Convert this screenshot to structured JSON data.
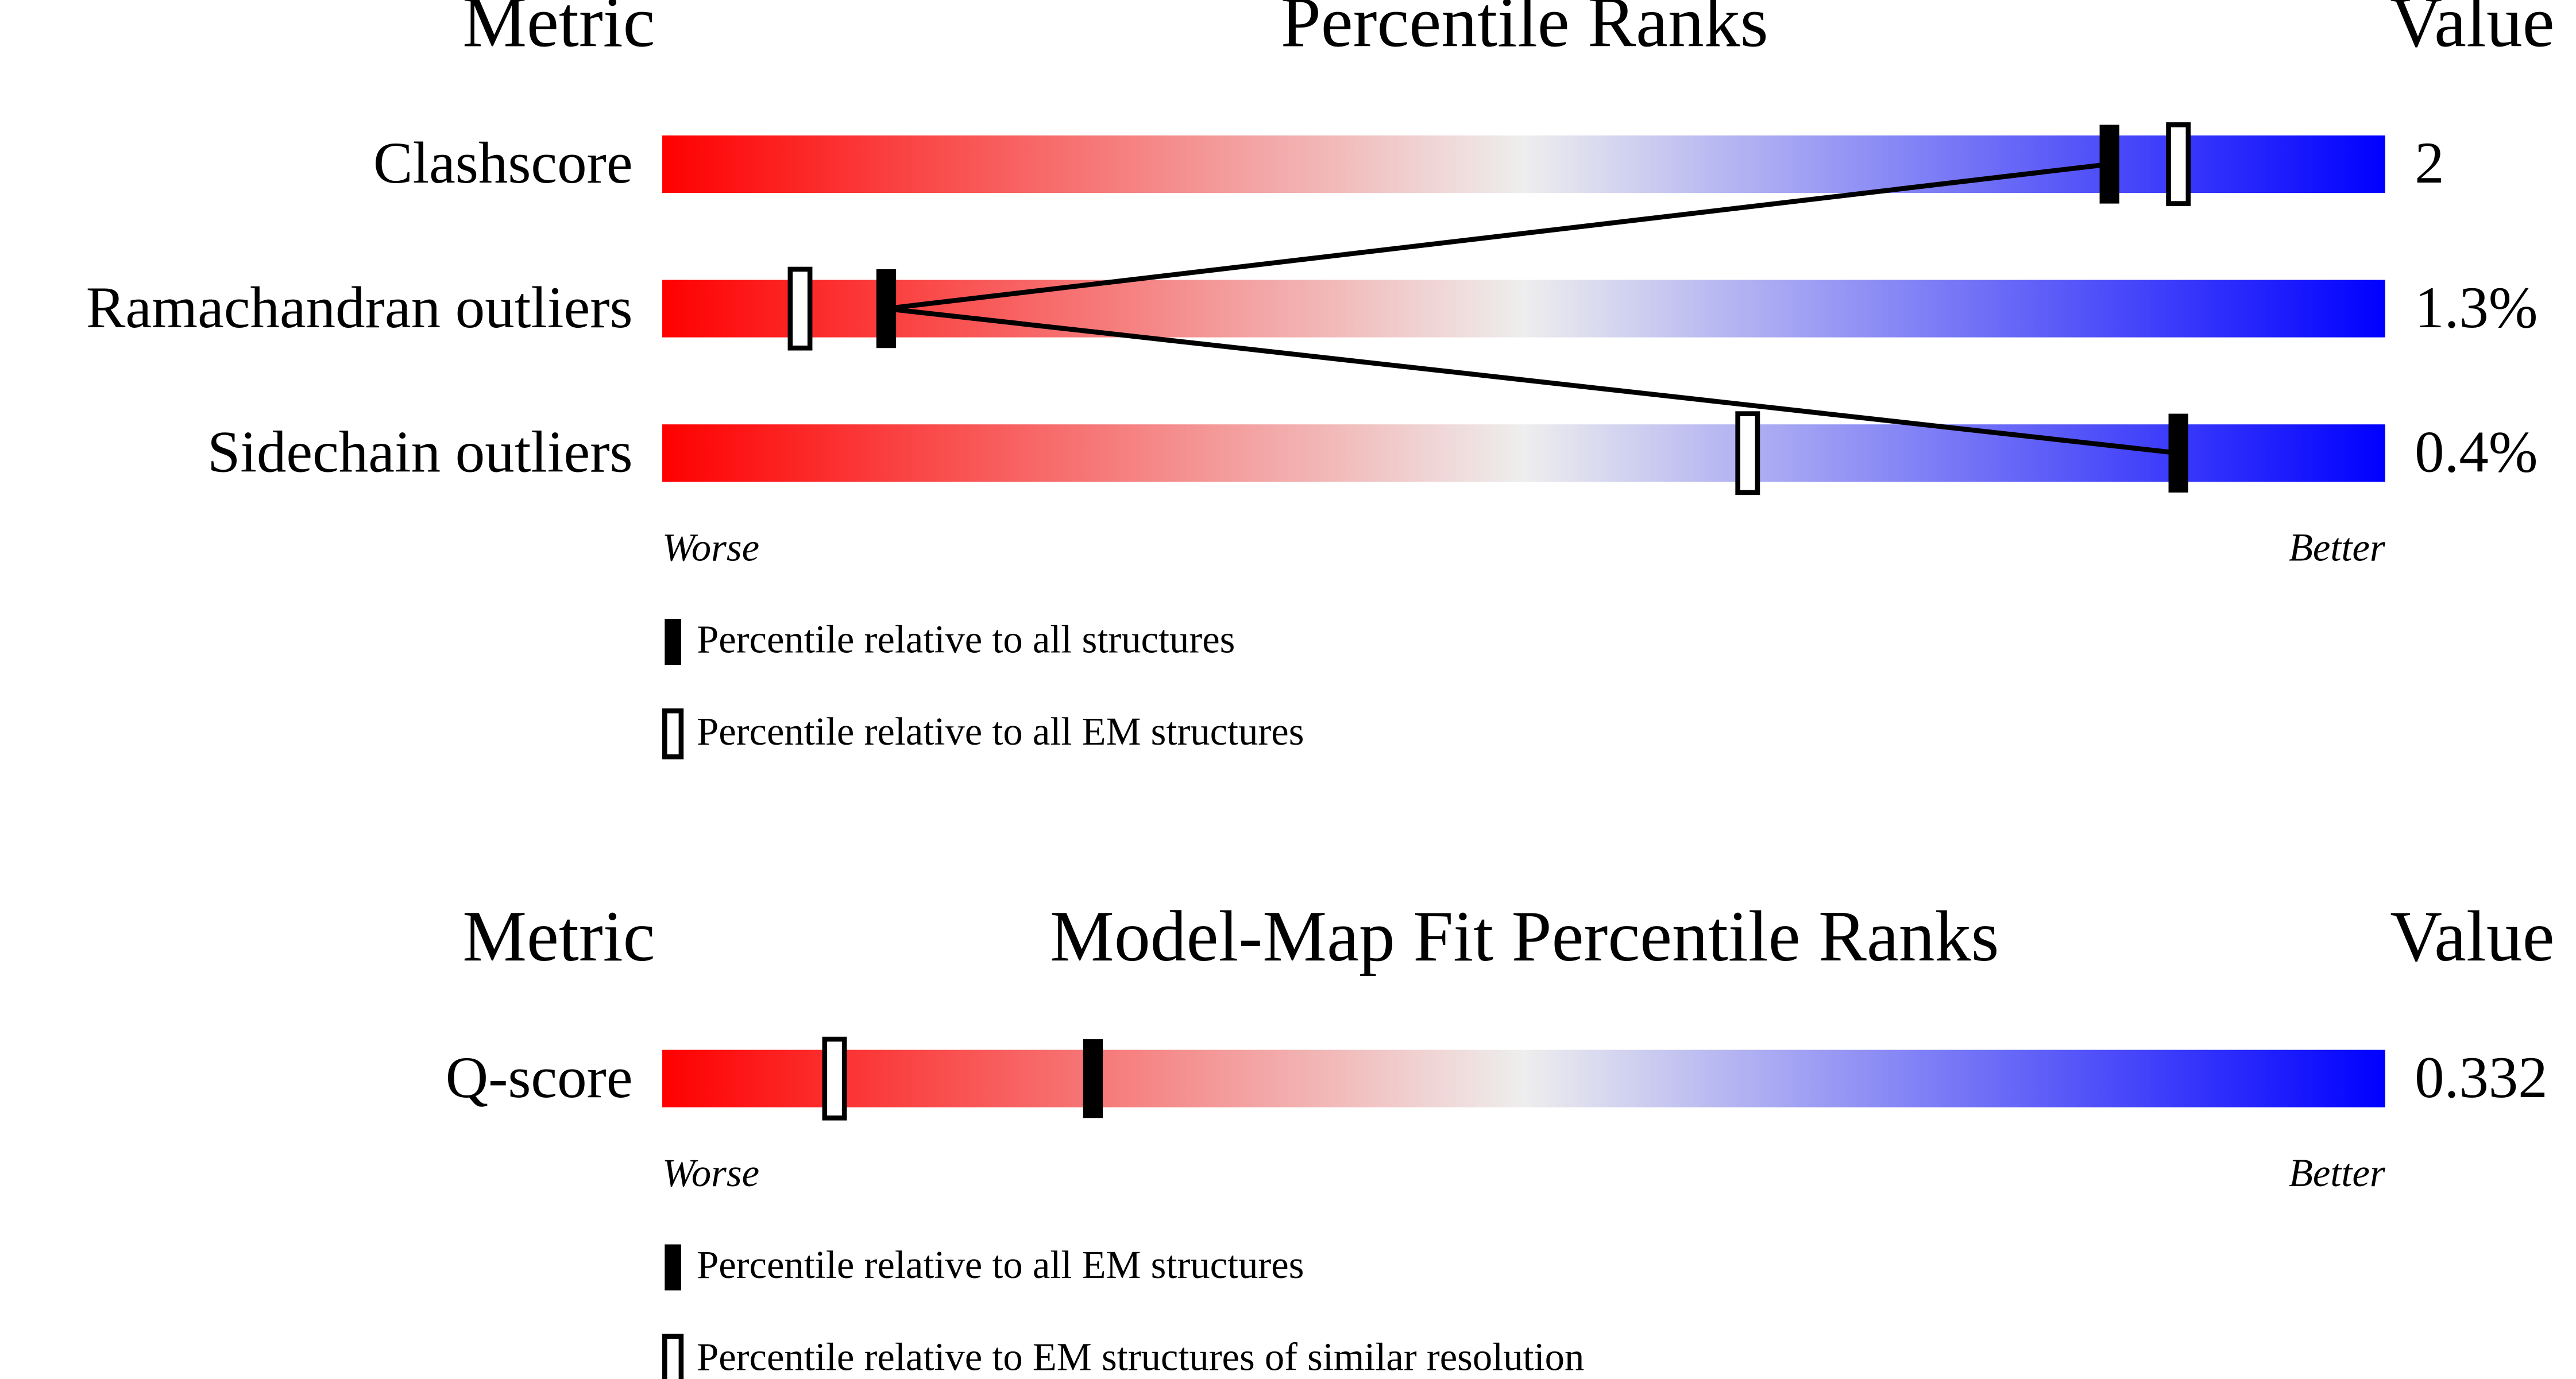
{
  "chart_data": [
    {
      "type": "percentile",
      "header": {
        "metric": "Metric",
        "title": "Percentile Ranks",
        "value": "Value"
      },
      "categories": [
        "Clashscore",
        "Ramachandran outliers",
        "Sidechain outliers"
      ],
      "value_column": [
        "2",
        "1.3%",
        "0.4%"
      ],
      "series": [
        {
          "name": "Percentile relative to all structures",
          "color": "#000000",
          "hollow": false,
          "connected": true,
          "values": [
            84,
            13,
            88
          ]
        },
        {
          "name": "Percentile relative to all EM structures",
          "color": "#000000",
          "hollow": true,
          "connected": false,
          "values": [
            88,
            8,
            63
          ]
        }
      ],
      "xlim": [
        0,
        100
      ],
      "x_left_label": "Worse",
      "x_right_label": "Better",
      "gradient": [
        "#ff0000",
        "#eeeeee",
        "#0000ff"
      ]
    },
    {
      "type": "percentile",
      "header": {
        "metric": "Metric",
        "title": "Model-Map Fit Percentile Ranks",
        "value": "Value"
      },
      "categories": [
        "Q-score"
      ],
      "value_column": [
        "0.332"
      ],
      "series": [
        {
          "name": "Percentile relative to all EM structures",
          "color": "#000000",
          "hollow": false,
          "connected": true,
          "values": [
            25
          ]
        },
        {
          "name": "Percentile relative to EM structures of similar resolution",
          "color": "#000000",
          "hollow": true,
          "connected": false,
          "values": [
            10
          ]
        }
      ],
      "xlim": [
        0,
        100
      ],
      "x_left_label": "Worse",
      "x_right_label": "Better",
      "gradient": [
        "#ff0000",
        "#eeeeee",
        "#0000ff"
      ]
    }
  ]
}
